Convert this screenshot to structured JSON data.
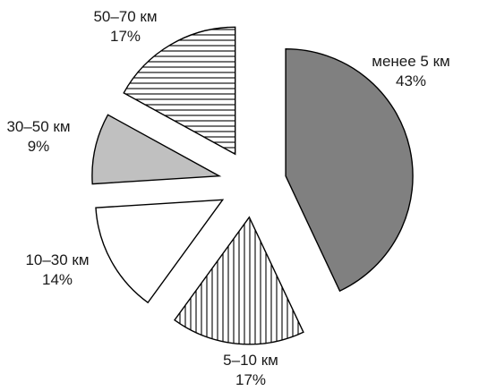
{
  "chart_data": {
    "type": "pie",
    "title": "",
    "exploded": true,
    "start_angle_deg": 0,
    "direction": "clockwise",
    "slices": [
      {
        "name": "менее 5 км",
        "label": "менее 5 км",
        "pct_label": "43%",
        "value": 43,
        "fill": "#808080",
        "pattern": "solid"
      },
      {
        "name": "5–10 км",
        "label": "5–10 км",
        "pct_label": "17%",
        "value": 17,
        "fill": "#ffffff",
        "pattern": "vertical-lines"
      },
      {
        "name": "10–30 км",
        "label": "10–30 км",
        "pct_label": "14%",
        "value": 14,
        "fill": "#ffffff",
        "pattern": "none"
      },
      {
        "name": "30–50 км",
        "label": "30–50 км",
        "pct_label": "9%",
        "value": 9,
        "fill": "#c0c0c0",
        "pattern": "solid"
      },
      {
        "name": "50–70 км",
        "label": "50–70 км",
        "pct_label": "17%",
        "value": 17,
        "fill": "#ffffff",
        "pattern": "horizontal-lines"
      }
    ]
  }
}
